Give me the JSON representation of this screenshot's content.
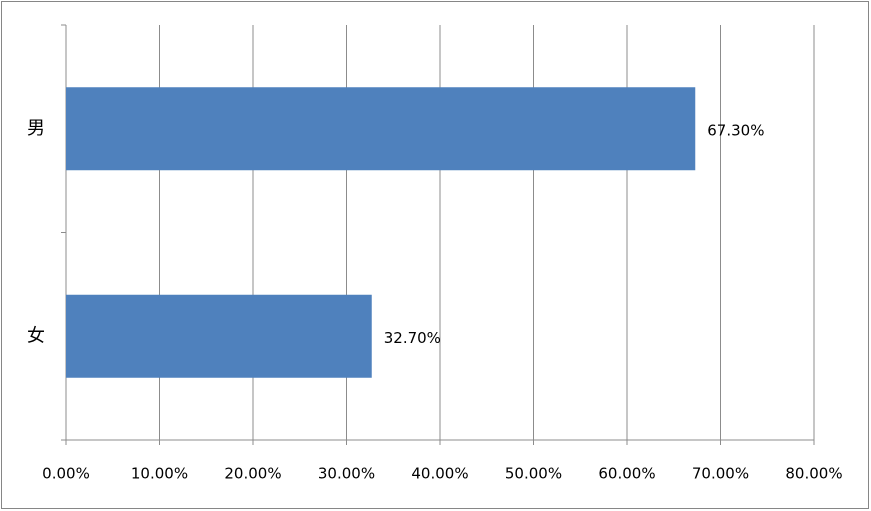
{
  "chart_data": {
    "type": "bar",
    "orientation": "horizontal",
    "categories": [
      "男",
      "女"
    ],
    "values": [
      67.3,
      32.7
    ],
    "value_labels": [
      "67.30%",
      "32.70%"
    ],
    "color": "#4f81bd",
    "xlim": [
      0,
      80
    ],
    "xticks": [
      {
        "value": 0,
        "label": "0.00%"
      },
      {
        "value": 10,
        "label": "10.00%"
      },
      {
        "value": 20,
        "label": "20.00%"
      },
      {
        "value": 30,
        "label": "30.00%"
      },
      {
        "value": 40,
        "label": "40.00%"
      },
      {
        "value": 50,
        "label": "50.00%"
      },
      {
        "value": 60,
        "label": "60.00%"
      },
      {
        "value": 70,
        "label": "70.00%"
      },
      {
        "value": 80,
        "label": "80.00%"
      }
    ],
    "grid": true
  }
}
